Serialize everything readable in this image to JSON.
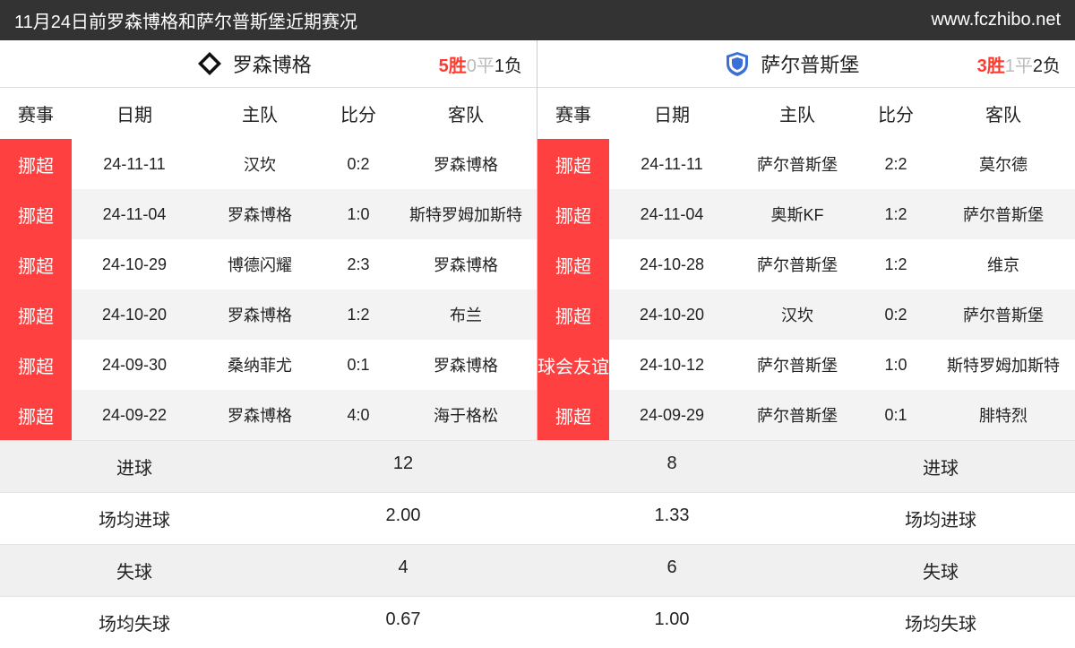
{
  "topbar": {
    "title": "11月24日前罗森博格和萨尔普斯堡近期赛况",
    "site": "www.fczhibo.net"
  },
  "colors": {
    "badge_bg": "#ff4040",
    "badge_fg": "#ffffff",
    "win": "#ff3b30",
    "draw": "#bbbbbb",
    "loss": "#222222",
    "row_even": "#f3f3f3",
    "row_odd": "#ffffff",
    "header_bg": "#333333",
    "header_fg": "#ffffff"
  },
  "columns": {
    "comp": "赛事",
    "date": "日期",
    "home": "主队",
    "score": "比分",
    "away": "客队"
  },
  "left": {
    "team": "罗森博格",
    "record": {
      "w": "5胜",
      "d": "0平",
      "l": "1负"
    },
    "rows": [
      {
        "comp": "挪超",
        "date": "24-11-11",
        "home": "汉坎",
        "score": "0:2",
        "away": "罗森博格"
      },
      {
        "comp": "挪超",
        "date": "24-11-04",
        "home": "罗森博格",
        "score": "1:0",
        "away": "斯特罗姆加斯特"
      },
      {
        "comp": "挪超",
        "date": "24-10-29",
        "home": "博德闪耀",
        "score": "2:3",
        "away": "罗森博格"
      },
      {
        "comp": "挪超",
        "date": "24-10-20",
        "home": "罗森博格",
        "score": "1:2",
        "away": "布兰"
      },
      {
        "comp": "挪超",
        "date": "24-09-30",
        "home": "桑纳菲尤",
        "score": "0:1",
        "away": "罗森博格"
      },
      {
        "comp": "挪超",
        "date": "24-09-22",
        "home": "罗森博格",
        "score": "4:0",
        "away": "海于格松"
      }
    ]
  },
  "right": {
    "team": "萨尔普斯堡",
    "record": {
      "w": "3胜",
      "d": "1平",
      "l": "2负"
    },
    "rows": [
      {
        "comp": "挪超",
        "date": "24-11-11",
        "home": "萨尔普斯堡",
        "score": "2:2",
        "away": "莫尔德"
      },
      {
        "comp": "挪超",
        "date": "24-11-04",
        "home": "奥斯KF",
        "score": "1:2",
        "away": "萨尔普斯堡"
      },
      {
        "comp": "挪超",
        "date": "24-10-28",
        "home": "萨尔普斯堡",
        "score": "1:2",
        "away": "维京"
      },
      {
        "comp": "挪超",
        "date": "24-10-20",
        "home": "汉坎",
        "score": "0:2",
        "away": "萨尔普斯堡"
      },
      {
        "comp": "球会友谊",
        "date": "24-10-12",
        "home": "萨尔普斯堡",
        "score": "1:0",
        "away": "斯特罗姆加斯特"
      },
      {
        "comp": "挪超",
        "date": "24-09-29",
        "home": "萨尔普斯堡",
        "score": "0:1",
        "away": "腓特烈"
      }
    ]
  },
  "summary": {
    "labels": {
      "goals": "进球",
      "gpg": "场均进球",
      "conceded": "失球",
      "cpg": "场均失球"
    },
    "left": {
      "goals": "12",
      "gpg": "2.00",
      "conceded": "4",
      "cpg": "0.67"
    },
    "right": {
      "goals": "8",
      "gpg": "1.33",
      "conceded": "6",
      "cpg": "1.00"
    }
  }
}
